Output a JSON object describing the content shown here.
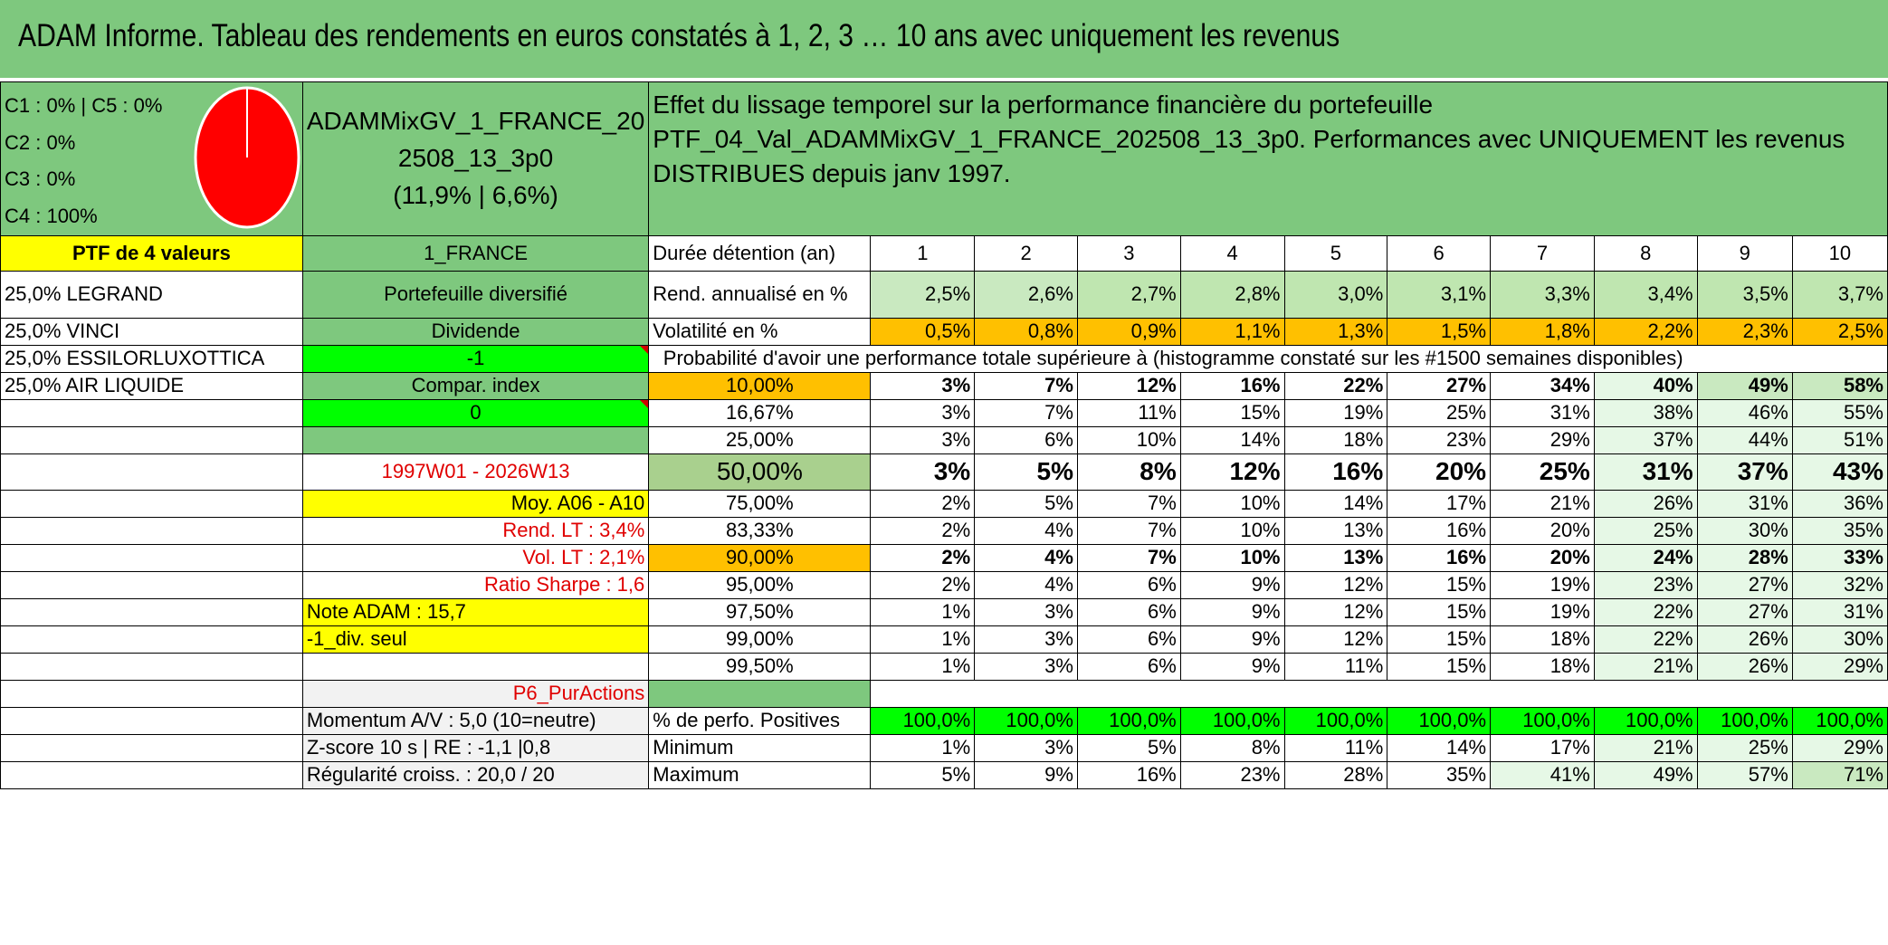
{
  "title": "ADAM Informe. Tableau des rendements en euros constatés à 1, 2, 3 … 10 ans avec uniquement les revenus",
  "classes": [
    "C1 : 0% | C5 : 0%",
    "C2 : 0%",
    "C3 : 0%",
    "C4 : 100%"
  ],
  "pie": {
    "color": "#ff0000"
  },
  "portfolio": {
    "name_line1": "ADAMMixGV_1_FRANCE_20",
    "name_line2": "2508_13_3p0",
    "name_line3": "(11,9% | 6,6%)",
    "ptf_label": "PTF de 4 valeurs",
    "code": "1_FRANCE",
    "type": "Portefeuille diversifié",
    "dividende_label": "Dividende",
    "dividende_value": "-1",
    "compar_label": "Compar. index",
    "compar_value": "0",
    "period": "1997W01 - 2026W13",
    "moy": "Moy. A06 - A10",
    "rend_lt": "Rend. LT : 3,4%",
    "vol_lt": "Vol. LT : 2,1%",
    "sharpe": "Ratio Sharpe : 1,6",
    "note": "Note ADAM : 15,7",
    "div_seul": "-1_div. seul",
    "p6": "P6_PurActions",
    "momentum": "Momentum A/V : 5,0 (10=neutre)",
    "zscore": "Z-score 10 s | RE : -1,1 |0,8",
    "regularite": "Régularité croiss. : 20,0 / 20"
  },
  "holdings": [
    "25,0% LEGRAND",
    "25,0% VINCI",
    "25,0% ESSILORLUXOTTICA",
    "25,0% AIR LIQUIDE"
  ],
  "description": {
    "line1": "Effet du lissage temporel sur la performance financière du portefeuille",
    "line2": "PTF_04_Val_ADAMMixGV_1_FRANCE_202508_13_3p0. Performances avec UNIQUEMENT les revenus DISTRIBUES depuis janv 1997."
  },
  "table": {
    "duree_label": "Durée détention (an)",
    "years": [
      "1",
      "2",
      "3",
      "4",
      "5",
      "6",
      "7",
      "8",
      "9",
      "10"
    ],
    "rend_label": "Rend. annualisé en %",
    "rend": [
      "2,5%",
      "2,6%",
      "2,7%",
      "2,8%",
      "3,0%",
      "3,1%",
      "3,3%",
      "3,4%",
      "3,5%",
      "3,7%"
    ],
    "vol_label": "Volatilité en %",
    "vol": [
      "0,5%",
      "0,8%",
      "0,9%",
      "1,1%",
      "1,3%",
      "1,5%",
      "1,8%",
      "2,2%",
      "2,3%",
      "2,5%"
    ],
    "proba_header": "Probabilité d'avoir une performance totale supérieure à (histogramme constaté sur les #1500 semaines disponibles)",
    "proba": [
      {
        "p": "10,00%",
        "v": [
          "3%",
          "7%",
          "12%",
          "16%",
          "22%",
          "27%",
          "34%",
          "40%",
          "49%",
          "58%"
        ]
      },
      {
        "p": "16,67%",
        "v": [
          "3%",
          "7%",
          "11%",
          "15%",
          "19%",
          "25%",
          "31%",
          "38%",
          "46%",
          "55%"
        ]
      },
      {
        "p": "25,00%",
        "v": [
          "3%",
          "6%",
          "10%",
          "14%",
          "18%",
          "23%",
          "29%",
          "37%",
          "44%",
          "51%"
        ]
      },
      {
        "p": "50,00%",
        "v": [
          "3%",
          "5%",
          "8%",
          "12%",
          "16%",
          "20%",
          "25%",
          "31%",
          "37%",
          "43%"
        ]
      },
      {
        "p": "75,00%",
        "v": [
          "2%",
          "5%",
          "7%",
          "10%",
          "14%",
          "17%",
          "21%",
          "26%",
          "31%",
          "36%"
        ]
      },
      {
        "p": "83,33%",
        "v": [
          "2%",
          "4%",
          "7%",
          "10%",
          "13%",
          "16%",
          "20%",
          "25%",
          "30%",
          "35%"
        ]
      },
      {
        "p": "90,00%",
        "v": [
          "2%",
          "4%",
          "7%",
          "10%",
          "13%",
          "16%",
          "20%",
          "24%",
          "28%",
          "33%"
        ]
      },
      {
        "p": "95,00%",
        "v": [
          "2%",
          "4%",
          "6%",
          "9%",
          "12%",
          "15%",
          "19%",
          "23%",
          "27%",
          "32%"
        ]
      },
      {
        "p": "97,50%",
        "v": [
          "1%",
          "3%",
          "6%",
          "9%",
          "12%",
          "15%",
          "19%",
          "22%",
          "27%",
          "31%"
        ]
      },
      {
        "p": "99,00%",
        "v": [
          "1%",
          "3%",
          "6%",
          "9%",
          "12%",
          "15%",
          "18%",
          "22%",
          "26%",
          "30%"
        ]
      },
      {
        "p": "99,50%",
        "v": [
          "1%",
          "3%",
          "6%",
          "9%",
          "11%",
          "15%",
          "18%",
          "21%",
          "26%",
          "29%"
        ]
      }
    ],
    "pos_label": "% de perfo. Positives",
    "pos": [
      "100,0%",
      "100,0%",
      "100,0%",
      "100,0%",
      "100,0%",
      "100,0%",
      "100,0%",
      "100,0%",
      "100,0%",
      "100,0%"
    ],
    "min_label": "Minimum",
    "min": [
      "1%",
      "3%",
      "5%",
      "8%",
      "11%",
      "14%",
      "17%",
      "21%",
      "25%",
      "29%"
    ],
    "max_label": "Maximum",
    "max": [
      "5%",
      "9%",
      "16%",
      "23%",
      "28%",
      "35%",
      "41%",
      "49%",
      "57%",
      "71%"
    ]
  }
}
